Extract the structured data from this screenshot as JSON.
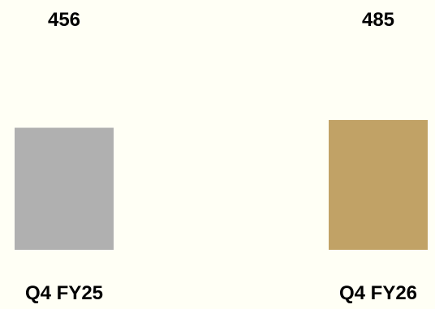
{
  "chart_data": {
    "type": "bar",
    "categories": [
      "Q4 FY25",
      "Q4 FY26"
    ],
    "values": [
      456,
      485
    ],
    "value_labels": [
      "456",
      "485"
    ],
    "colors": [
      "#b0b0b0",
      "#c1a266"
    ],
    "background": "#fffff5",
    "title": "",
    "xlabel": "",
    "ylabel": "",
    "grid": false,
    "legend": "none"
  }
}
